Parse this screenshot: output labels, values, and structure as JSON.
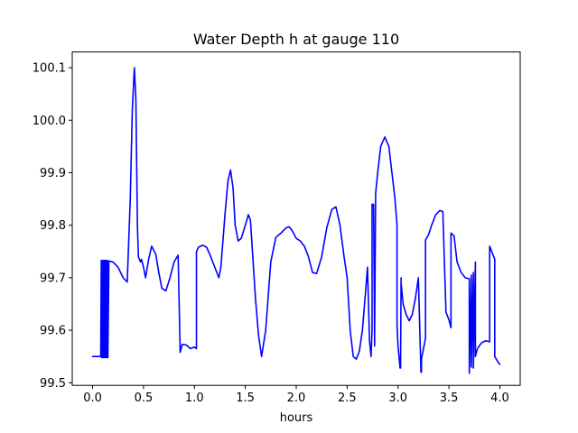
{
  "chart_data": {
    "type": "line",
    "title": "Water Depth h at gauge 110",
    "xlabel": "hours",
    "ylabel": "",
    "xlim": [
      -0.2,
      4.2
    ],
    "ylim": [
      99.495,
      100.13
    ],
    "xticks": [
      0.0,
      0.5,
      1.0,
      1.5,
      2.0,
      2.5,
      3.0,
      3.5,
      4.0
    ],
    "xtick_labels": [
      "0.0",
      "0.5",
      "1.0",
      "1.5",
      "2.0",
      "2.5",
      "3.0",
      "3.5",
      "4.0"
    ],
    "yticks": [
      99.5,
      99.6,
      99.7,
      99.8,
      99.9,
      100.0,
      100.1
    ],
    "ytick_labels": [
      "99.5",
      "99.6",
      "99.7",
      "99.8",
      "99.9",
      "100.0",
      "100.1"
    ],
    "grid": false,
    "series": [
      {
        "color": "#0000ff",
        "x": [
          0.0,
          0.08,
          0.085,
          0.09,
          0.095,
          0.1,
          0.105,
          0.11,
          0.115,
          0.12,
          0.125,
          0.13,
          0.135,
          0.14,
          0.145,
          0.15,
          0.16,
          0.2,
          0.25,
          0.3,
          0.34,
          0.37,
          0.39,
          0.41,
          0.425,
          0.44,
          0.45,
          0.47,
          0.48,
          0.5,
          0.52,
          0.55,
          0.58,
          0.62,
          0.65,
          0.68,
          0.72,
          0.76,
          0.8,
          0.84,
          0.86,
          0.86,
          0.88,
          0.92,
          0.96,
          1.0,
          1.02,
          1.02,
          1.04,
          1.08,
          1.12,
          1.15,
          1.2,
          1.24,
          1.26,
          1.3,
          1.33,
          1.355,
          1.38,
          1.4,
          1.43,
          1.46,
          1.5,
          1.53,
          1.55,
          1.57,
          1.6,
          1.63,
          1.66,
          1.7,
          1.75,
          1.8,
          1.85,
          1.9,
          1.93,
          1.96,
          2.0,
          2.04,
          2.08,
          2.12,
          2.16,
          2.2,
          2.25,
          2.3,
          2.35,
          2.39,
          2.43,
          2.47,
          2.5,
          2.53,
          2.56,
          2.59,
          2.62,
          2.65,
          2.68,
          2.7,
          2.72,
          2.735,
          2.745,
          2.745,
          2.76,
          2.77,
          2.77,
          2.78,
          2.8,
          2.83,
          2.87,
          2.91,
          2.94,
          2.97,
          2.99,
          2.99,
          3.0,
          3.02,
          3.025,
          3.03,
          3.03,
          3.05,
          3.08,
          3.11,
          3.14,
          3.17,
          3.2,
          3.225,
          3.23,
          3.23,
          3.27,
          3.27,
          3.3,
          3.33,
          3.37,
          3.41,
          3.44,
          3.47,
          3.47,
          3.5,
          3.52,
          3.52,
          3.55,
          3.58,
          3.62,
          3.66,
          3.7,
          3.7,
          3.72,
          3.72,
          3.74,
          3.74,
          3.76,
          3.76,
          3.78,
          3.82,
          3.86,
          3.9,
          3.9,
          3.93,
          3.95,
          3.95,
          3.98,
          4.0
        ],
        "y": [
          99.55,
          99.55,
          99.733,
          99.548,
          99.733,
          99.548,
          99.733,
          99.548,
          99.733,
          99.548,
          99.733,
          99.548,
          99.733,
          99.548,
          99.733,
          99.548,
          99.732,
          99.73,
          99.72,
          99.7,
          99.692,
          99.85,
          100.02,
          100.1,
          100.04,
          99.8,
          99.74,
          99.73,
          99.735,
          99.72,
          99.7,
          99.735,
          99.76,
          99.745,
          99.71,
          99.68,
          99.675,
          99.7,
          99.73,
          99.743,
          99.56,
          99.558,
          99.573,
          99.572,
          99.565,
          99.568,
          99.565,
          99.75,
          99.758,
          99.762,
          99.758,
          99.745,
          99.72,
          99.7,
          99.72,
          99.82,
          99.885,
          99.905,
          99.87,
          99.8,
          99.77,
          99.775,
          99.8,
          99.82,
          99.81,
          99.75,
          99.66,
          99.59,
          99.55,
          99.6,
          99.73,
          99.777,
          99.785,
          99.795,
          99.797,
          99.79,
          99.775,
          99.77,
          99.76,
          99.74,
          99.71,
          99.708,
          99.74,
          99.795,
          99.83,
          99.835,
          99.8,
          99.74,
          99.7,
          99.6,
          99.55,
          99.545,
          99.56,
          99.6,
          99.67,
          99.72,
          99.58,
          99.55,
          99.6,
          99.84,
          99.84,
          99.57,
          99.58,
          99.86,
          99.9,
          99.95,
          99.968,
          99.95,
          99.9,
          99.85,
          99.8,
          99.61,
          99.57,
          99.528,
          99.528,
          99.7,
          99.69,
          99.65,
          99.63,
          99.618,
          99.63,
          99.66,
          99.7,
          99.52,
          99.52,
          99.545,
          99.585,
          99.772,
          99.782,
          99.8,
          99.82,
          99.828,
          99.826,
          99.64,
          99.635,
          99.62,
          99.605,
          99.785,
          99.78,
          99.73,
          99.71,
          99.7,
          99.698,
          99.518,
          99.705,
          99.53,
          99.71,
          99.528,
          99.73,
          99.55,
          99.565,
          99.576,
          99.58,
          99.578,
          99.76,
          99.745,
          99.735,
          99.55,
          99.54,
          99.535
        ]
      }
    ]
  }
}
